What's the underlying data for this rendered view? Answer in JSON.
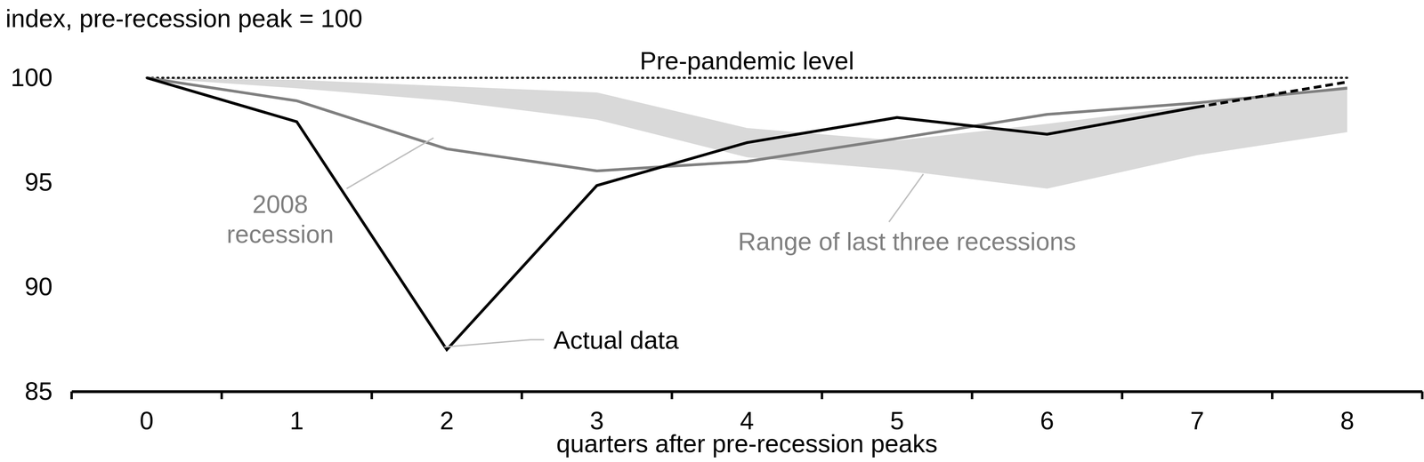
{
  "chart_data": {
    "type": "line",
    "y_label": "index, pre-recession peak = 100",
    "x_label": "quarters after pre-recession peaks",
    "categories": [
      "0",
      "1",
      "2",
      "3",
      "4",
      "5",
      "6",
      "7",
      "8"
    ],
    "ylim": [
      85,
      100
    ],
    "yticks": [
      85,
      90,
      95,
      100
    ],
    "series": [
      {
        "name": "Range of last three recessions",
        "type": "area",
        "color": "#d9d9d9",
        "upper": [
          100,
          99.9,
          99.6,
          99.3,
          97.6,
          97.0,
          97.8,
          98.7,
          99.6
        ],
        "lower": [
          100,
          99.5,
          98.9,
          98.0,
          96.2,
          95.6,
          94.7,
          96.3,
          97.4
        ]
      },
      {
        "name": "2008 recession",
        "type": "line",
        "color": "#808080",
        "values": [
          100,
          98.9,
          96.6,
          95.55,
          96.0,
          97.1,
          98.25,
          98.8,
          99.5
        ]
      },
      {
        "name": "Actual data",
        "type": "line",
        "color": "#000000",
        "values": [
          100,
          97.9,
          87.0,
          94.85,
          96.9,
          98.1,
          97.3,
          98.6,
          null
        ]
      },
      {
        "type": "line",
        "color": "#000000",
        "line_style": "dashed",
        "values": [
          null,
          null,
          null,
          null,
          null,
          null,
          null,
          98.6,
          99.8
        ]
      }
    ],
    "annotations": [
      {
        "text": "Pre-pandemic level",
        "y": 100,
        "line_style": "dotted"
      }
    ]
  }
}
